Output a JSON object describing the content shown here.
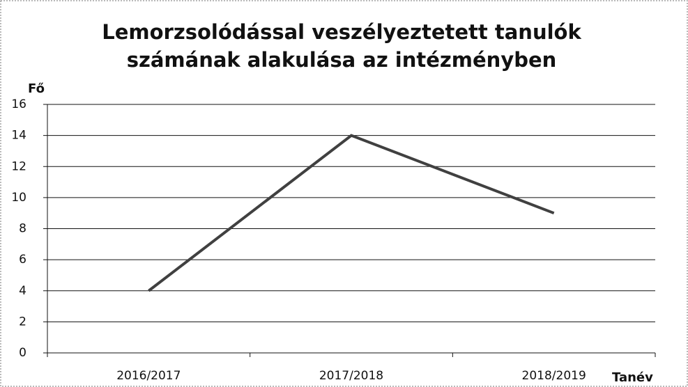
{
  "chart_data": {
    "type": "line",
    "title": [
      "Lemorzsolódással veszélyeztetett tanulók",
      "számának alakulása az intézményben"
    ],
    "y_label": "Fő",
    "x_label": "Tanév",
    "categories": [
      "2016/2017",
      "2017/2018",
      "2018/2019"
    ],
    "values": [
      4,
      14,
      9
    ],
    "color": "#404040",
    "ylim": [
      0,
      16
    ],
    "yticks": [
      0,
      2,
      4,
      6,
      8,
      10,
      12,
      14,
      16
    ],
    "grid": true
  }
}
